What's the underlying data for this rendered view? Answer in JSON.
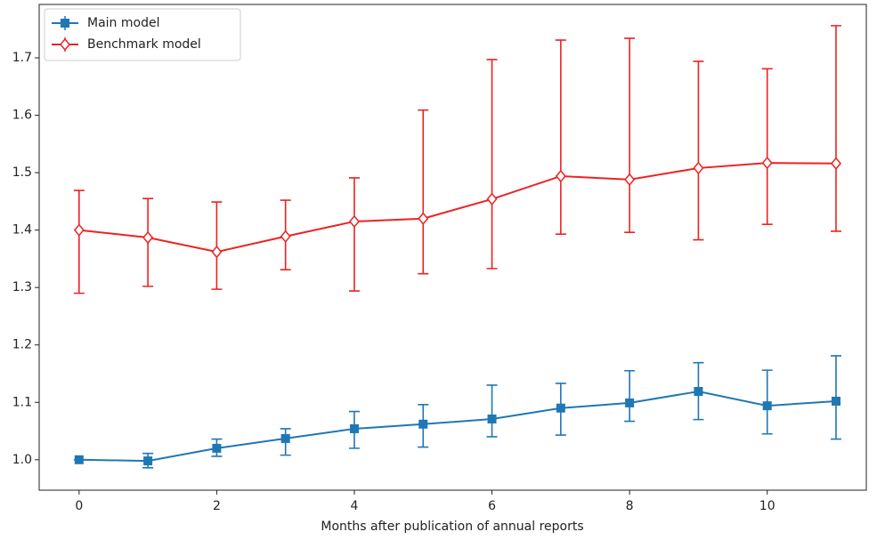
{
  "chart_data": {
    "type": "errorbar",
    "x_label": "Months after publication of annual reports",
    "x": [
      0,
      1,
      2,
      3,
      4,
      5,
      6,
      7,
      8,
      9,
      10,
      11
    ],
    "xlim": [
      -0.58,
      11.44
    ],
    "xticks": [
      0,
      2,
      4,
      6,
      8,
      10
    ],
    "ylim": [
      0.947,
      1.793
    ],
    "yticks": [
      {
        "value": 1,
        "label": "1.0"
      },
      1.1,
      1.2,
      1.3,
      1.4,
      1.5,
      1.6,
      1.7
    ],
    "legend": "upper left",
    "series": [
      {
        "name": "Main model",
        "color": "#1f77b4",
        "marker": "square",
        "values": [
          1.0,
          0.998,
          1.02,
          1.037,
          1.054,
          1.062,
          1.071,
          1.09,
          1.099,
          1.119,
          1.094,
          1.102
        ],
        "lower": [
          1.0,
          0.986,
          1.006,
          1.008,
          1.02,
          1.022,
          1.04,
          1.043,
          1.067,
          1.07,
          1.045,
          1.036
        ],
        "upper": [
          1.0,
          1.011,
          1.036,
          1.054,
          1.084,
          1.096,
          1.13,
          1.133,
          1.155,
          1.169,
          1.156,
          1.181
        ]
      },
      {
        "name": "Benchmark model",
        "color": "#ee2222",
        "marker": "diamond",
        "values": [
          1.4,
          1.387,
          1.362,
          1.389,
          1.415,
          1.42,
          1.454,
          1.494,
          1.488,
          1.508,
          1.517,
          1.516
        ],
        "lower": [
          1.29,
          1.302,
          1.297,
          1.331,
          1.294,
          1.324,
          1.333,
          1.393,
          1.396,
          1.383,
          1.41,
          1.398
        ],
        "upper": [
          1.469,
          1.455,
          1.449,
          1.452,
          1.491,
          1.609,
          1.697,
          1.731,
          1.734,
          1.694,
          1.681,
          1.756
        ]
      }
    ]
  }
}
